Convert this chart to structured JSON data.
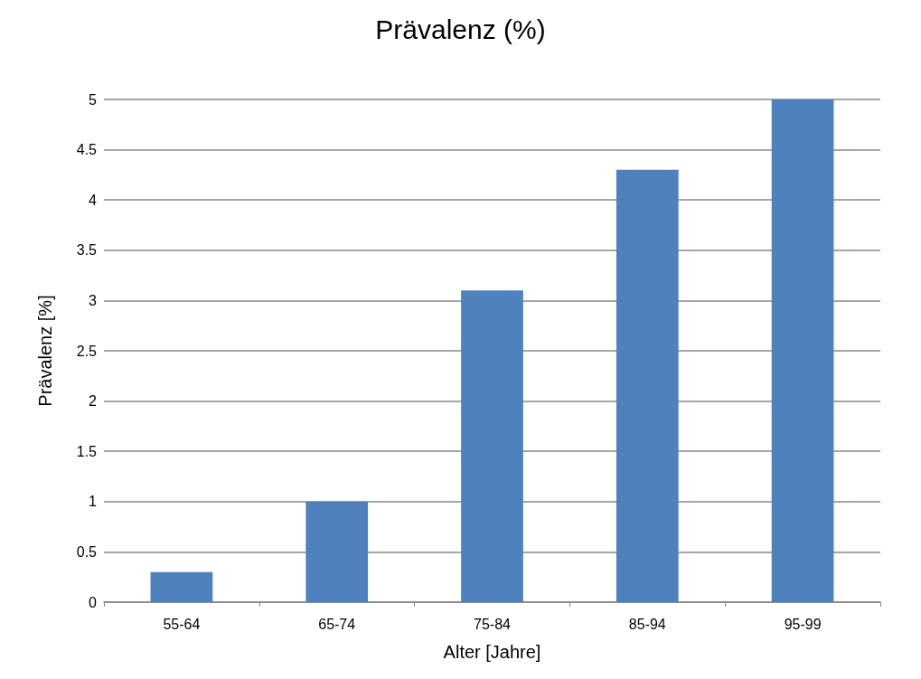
{
  "chart_data": {
    "type": "bar",
    "title": "Prävalenz (%)",
    "xlabel": "Alter [Jahre]",
    "ylabel": "Prävalenz [%]",
    "categories": [
      "55-64",
      "65-74",
      "75-84",
      "85-94",
      "95-99"
    ],
    "values": [
      0.3,
      1.0,
      3.1,
      4.3,
      5.0
    ],
    "color": "#4f81bd",
    "ylim": [
      0,
      5
    ],
    "yticks": [
      0,
      0.5,
      1,
      1.5,
      2,
      2.5,
      3,
      3.5,
      4,
      4.5,
      5
    ],
    "grid": "y"
  }
}
